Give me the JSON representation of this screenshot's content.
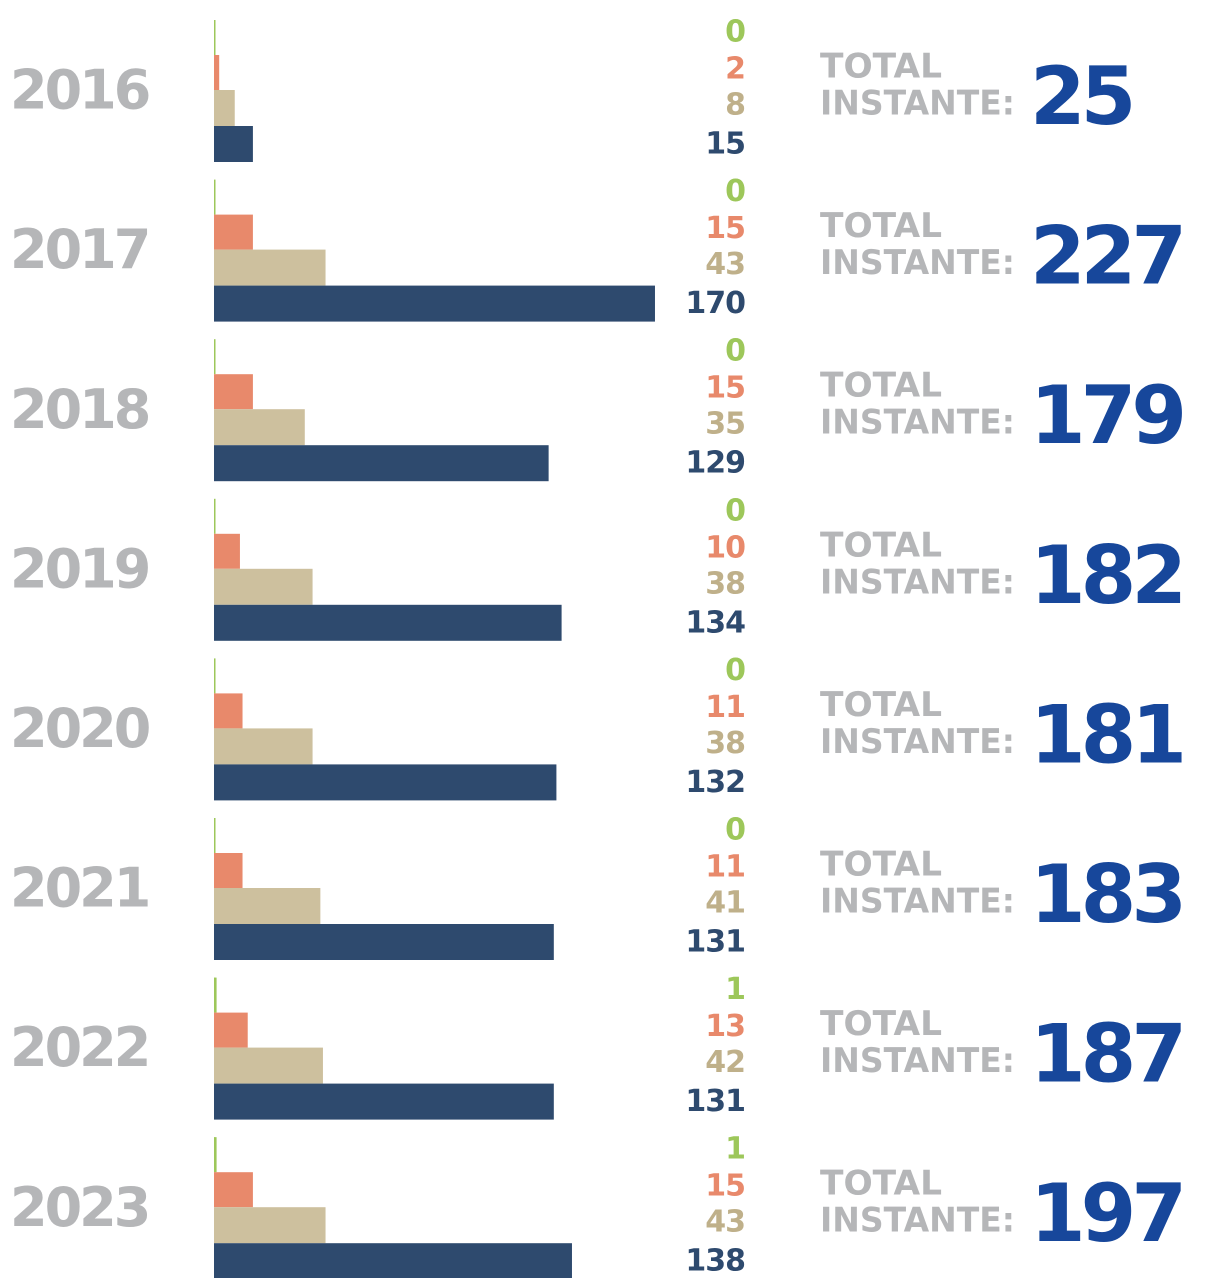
{
  "chart_data": {
    "type": "bar",
    "categories": [
      "2016",
      "2017",
      "2018",
      "2019",
      "2020",
      "2021",
      "2022",
      "2023"
    ],
    "series": [
      {
        "color": "#9dc75a",
        "values": [
          0,
          0,
          0,
          0,
          0,
          0,
          1,
          1
        ]
      },
      {
        "color": "#e8896b",
        "values": [
          2,
          15,
          15,
          10,
          11,
          11,
          13,
          15
        ]
      },
      {
        "color": "#cdc09e",
        "values": [
          8,
          43,
          35,
          38,
          38,
          41,
          42,
          43
        ]
      },
      {
        "color": "#2e4a6e",
        "values": [
          15,
          170,
          129,
          134,
          132,
          131,
          131,
          138
        ]
      }
    ],
    "total_label": [
      "TOTAL",
      "INSTANTE:"
    ],
    "totals": [
      25,
      227,
      179,
      182,
      181,
      183,
      187,
      197
    ],
    "total_color": "#17479b",
    "label_colors": [
      "#9dc75a",
      "#e8896b",
      "#bfb08a",
      "#2e4a6e"
    ]
  }
}
